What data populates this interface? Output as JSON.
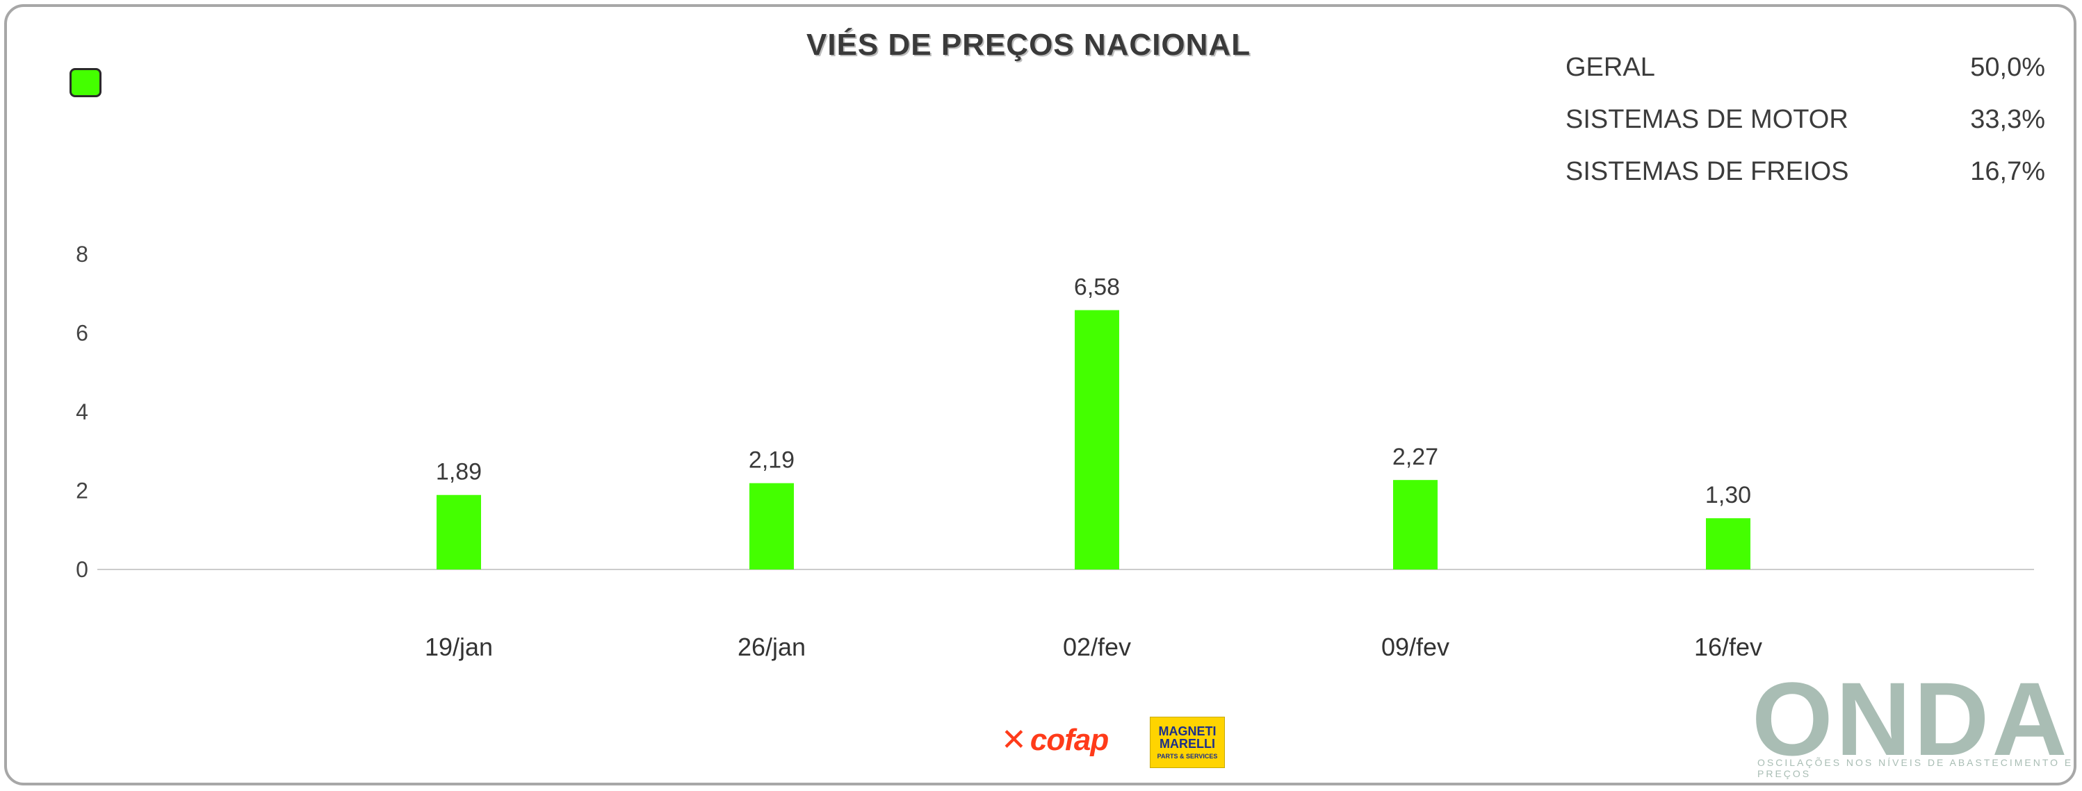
{
  "header": {
    "title": "VIÉS DE PREÇOS NACIONAL"
  },
  "summary": [
    {
      "label": "GERAL",
      "value": "50,0%"
    },
    {
      "label": "SISTEMAS DE MOTOR",
      "value": "33,3%"
    },
    {
      "label": "SISTEMAS DE FREIOS",
      "value": "16,7%"
    }
  ],
  "footer": {
    "onda_logo": "ONDA",
    "onda_tagline": "OSCILAÇÕES NOS NÍVEIS DE ABASTECIMENTO E PREÇOS",
    "cofap_logo": "cofap",
    "magneti_line1": "MAGNETI",
    "magneti_line2": "MARELLI",
    "magneti_line3": "PARTS & SERVICES"
  },
  "colors": {
    "bar": "#44ff00",
    "axis": "#cccccc",
    "onda": "#a9bdb4"
  },
  "chart_data": {
    "type": "bar",
    "categories": [
      "19/jan",
      "26/jan",
      "02/fev",
      "09/fev",
      "16/fev"
    ],
    "values": [
      1.89,
      2.19,
      6.58,
      2.27,
      1.3
    ],
    "value_labels": [
      "1,89",
      "2,19",
      "6,58",
      "2,27",
      "1,30"
    ],
    "y_ticks": [
      "0",
      "2",
      "4",
      "6",
      "8"
    ],
    "ylim": [
      0,
      8
    ],
    "grid": false,
    "legend": "none"
  }
}
